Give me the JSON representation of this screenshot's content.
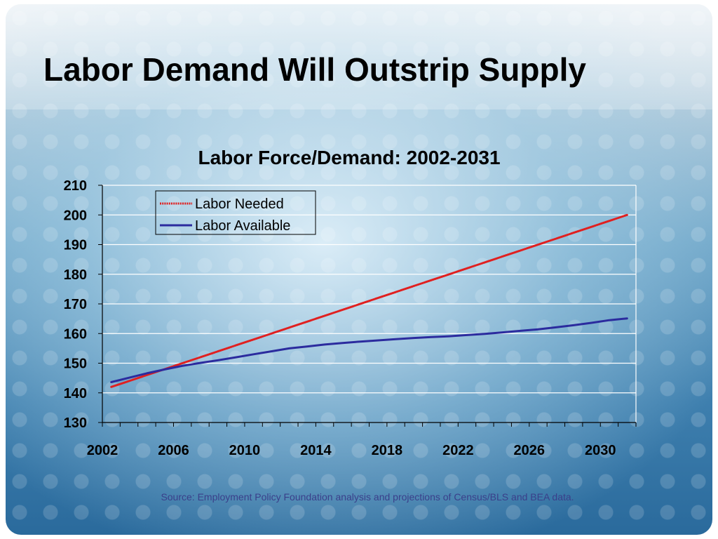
{
  "slide": {
    "title": "Labor Demand Will Outstrip Supply",
    "source": "Source: Employment Policy Foundation analysis and projections of  Census/BLS and BEA data."
  },
  "colors": {
    "labor_needed": "#e02020",
    "labor_available": "#2b2b9e",
    "grid": "#ffffff",
    "axis": "#000000"
  },
  "chart_data": {
    "type": "line",
    "title": "Labor Force/Demand:  2002-2031",
    "xlabel": "",
    "ylabel": "",
    "xlim": [
      2002,
      2031
    ],
    "ylim": [
      130,
      210
    ],
    "y_ticks": [
      130,
      140,
      150,
      160,
      170,
      180,
      190,
      200,
      210
    ],
    "x_tick_labels": [
      "2002",
      "2006",
      "2010",
      "2014",
      "2018",
      "2022",
      "2026",
      "2030"
    ],
    "grid": true,
    "legend_position": "top-left",
    "x": [
      2002,
      2003,
      2004,
      2005,
      2006,
      2007,
      2008,
      2009,
      2010,
      2011,
      2012,
      2013,
      2014,
      2015,
      2016,
      2017,
      2018,
      2019,
      2020,
      2021,
      2022,
      2023,
      2024,
      2025,
      2026,
      2027,
      2028,
      2029,
      2030,
      2031
    ],
    "series": [
      {
        "name": "Labor Needed",
        "values": [
          142,
          144,
          146,
          148,
          150,
          152,
          154,
          156,
          158,
          160,
          162,
          164,
          166,
          168,
          170,
          172,
          174,
          176,
          178,
          180,
          182,
          184,
          186,
          188,
          190,
          192,
          194,
          196,
          198,
          200
        ]
      },
      {
        "name": "Labor Available",
        "values": [
          143.6,
          145.1,
          146.6,
          147.9,
          149.1,
          150.1,
          151,
          152,
          153,
          154,
          155,
          155.6,
          156.3,
          156.8,
          157.3,
          157.7,
          158.1,
          158.5,
          158.8,
          159.1,
          159.5,
          159.9,
          160.4,
          160.9,
          161.4,
          162.1,
          162.8,
          163.6,
          164.5,
          165.1
        ]
      }
    ]
  }
}
